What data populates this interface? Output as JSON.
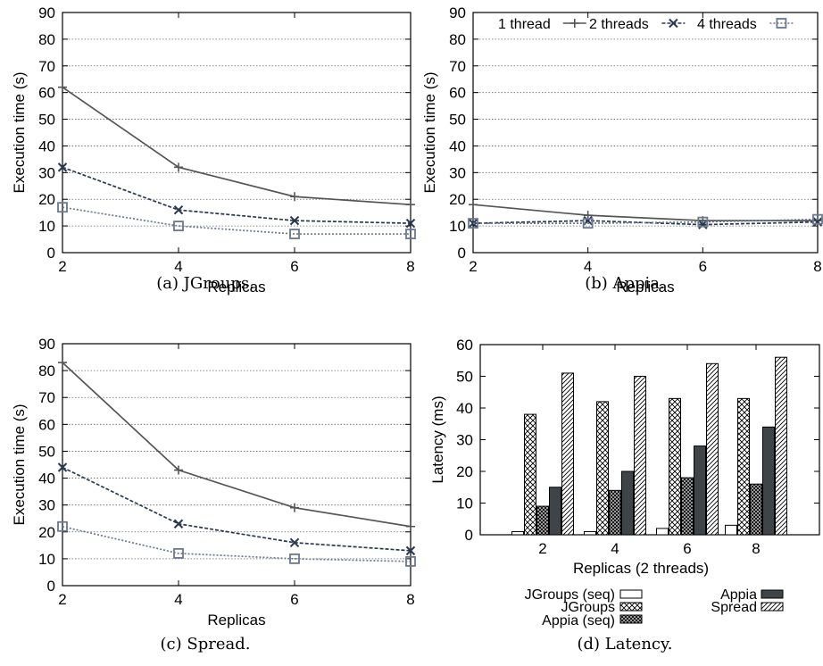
{
  "chart_data": [
    {
      "type": "line",
      "caption": "(a) JGroups.",
      "xlabel": "Replicas",
      "ylabel": "Execution time (s)",
      "x": [
        2,
        4,
        6,
        8
      ],
      "xlim": [
        2,
        8
      ],
      "ylim": [
        0,
        90
      ],
      "yticks": [
        0,
        10,
        20,
        30,
        40,
        50,
        60,
        70,
        80,
        90
      ],
      "grid": true,
      "series": [
        {
          "values": [
            62,
            32,
            21,
            18
          ],
          "color": "#555555",
          "marker": "plus"
        },
        {
          "values": [
            32,
            16,
            12,
            11
          ],
          "color": "#2a3850",
          "marker": "cross"
        },
        {
          "values": [
            17,
            10,
            7,
            7
          ],
          "color": "#6a7890",
          "marker": "square"
        }
      ]
    },
    {
      "type": "line",
      "caption": "(b) Appia.",
      "xlabel": "Replicas",
      "ylabel": "Execution time (s)",
      "x": [
        2,
        4,
        6,
        8
      ],
      "xlim": [
        2,
        8
      ],
      "ylim": [
        0,
        90
      ],
      "yticks": [
        0,
        10,
        20,
        30,
        40,
        50,
        60,
        70,
        80,
        90
      ],
      "grid": true,
      "legend_position": "top",
      "series": [
        {
          "name": "1 thread",
          "values": [
            18,
            14,
            12,
            12
          ],
          "color": "#555555",
          "marker": "plus"
        },
        {
          "name": "2 threads",
          "values": [
            11,
            12,
            10.5,
            11.5
          ],
          "color": "#2a3850",
          "marker": "cross"
        },
        {
          "name": "4 threads",
          "values": [
            11,
            11,
            11.5,
            12.5
          ],
          "color": "#6a7890",
          "marker": "square"
        }
      ]
    },
    {
      "type": "line",
      "caption": "(c) Spread.",
      "xlabel": "Replicas",
      "ylabel": "Execution time (s)",
      "x": [
        2,
        4,
        6,
        8
      ],
      "xlim": [
        2,
        8
      ],
      "ylim": [
        0,
        90
      ],
      "yticks": [
        0,
        10,
        20,
        30,
        40,
        50,
        60,
        70,
        80,
        90
      ],
      "grid": true,
      "series": [
        {
          "values": [
            83,
            43,
            29,
            22
          ],
          "color": "#555555",
          "marker": "plus"
        },
        {
          "values": [
            44,
            23,
            16,
            13
          ],
          "color": "#2a3850",
          "marker": "cross"
        },
        {
          "values": [
            22,
            12,
            10,
            9
          ],
          "color": "#6a7890",
          "marker": "square"
        }
      ]
    },
    {
      "type": "bar",
      "caption": "(d) Latency.",
      "xlabel": "Replicas (2 threads)",
      "ylabel": "Latency (ms)",
      "categories": [
        "2",
        "4",
        "6",
        "8"
      ],
      "ylim": [
        0,
        60
      ],
      "yticks": [
        0,
        10,
        20,
        30,
        40,
        50,
        60
      ],
      "legend_position": "bottom",
      "series": [
        {
          "name": "JGroups (seq)",
          "values": [
            1,
            1,
            2,
            3
          ],
          "pattern": "white"
        },
        {
          "name": "JGroups",
          "values": [
            38,
            42,
            43,
            43
          ],
          "pattern": "crosshatch"
        },
        {
          "name": "Appia (seq)",
          "values": [
            9,
            14,
            18,
            16
          ],
          "pattern": "checker"
        },
        {
          "name": "Appia",
          "values": [
            15,
            20,
            28,
            34
          ],
          "pattern": "dark"
        },
        {
          "name": "Spread",
          "values": [
            51,
            50,
            54,
            56
          ],
          "pattern": "diagonal"
        }
      ]
    }
  ]
}
